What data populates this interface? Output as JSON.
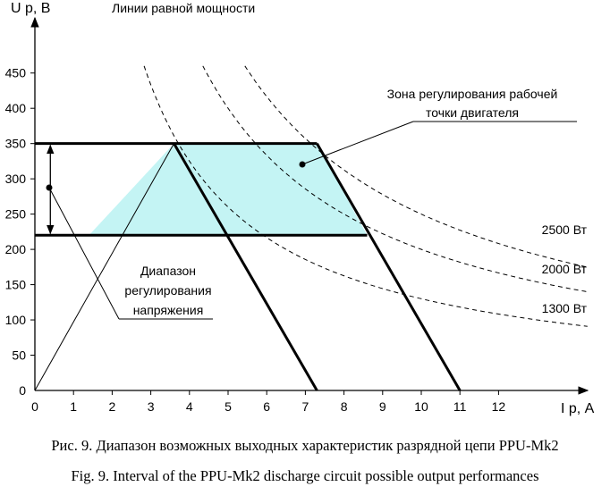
{
  "chart_data": {
    "type": "line",
    "xlabel": "I р, А",
    "ylabel": "U р, В",
    "xlim": [
      0,
      13.5
    ],
    "ylim": [
      0,
      500
    ],
    "x_ticks": [
      0,
      1,
      2,
      3,
      4,
      5,
      6,
      7,
      8,
      9,
      10,
      11,
      12
    ],
    "y_ticks": [
      0,
      50,
      100,
      150,
      200,
      250,
      300,
      350,
      400,
      450
    ],
    "constant_power_label": "Линии равной мощности",
    "constant_power_curves": [
      {
        "label": "2500 Вт",
        "power": 2500
      },
      {
        "label": "2000 Вт",
        "power": 2000
      },
      {
        "label": "1300 Вт",
        "power": 1300
      }
    ],
    "u_max": 350,
    "u_min": 220,
    "left_line": {
      "x": [
        3.6,
        7.3
      ],
      "y": [
        350,
        0
      ]
    },
    "right_line": {
      "x": [
        7.3,
        11.0
      ],
      "y": [
        350,
        0
      ]
    },
    "triangle": {
      "x": [
        0,
        3.6
      ],
      "y": [
        0,
        350
      ]
    },
    "zone_polygon": {
      "x": [
        3.6,
        7.3,
        8.6,
        1.4
      ],
      "y": [
        350,
        350,
        220,
        220
      ]
    },
    "zone_label": [
      "Зона регулирования рабочей",
      "точки двигателя"
    ],
    "voltage_range_label": [
      "Диапазон",
      "регулирования",
      "напряжения"
    ]
  },
  "captions": {
    "ru": "Рис. 9. Диапазон возможных выходных характеристик разрядной цепи PPU-Mk2",
    "en": "Fig. 9. Interval of the PPU-Mk2 discharge circuit possible output performances"
  }
}
